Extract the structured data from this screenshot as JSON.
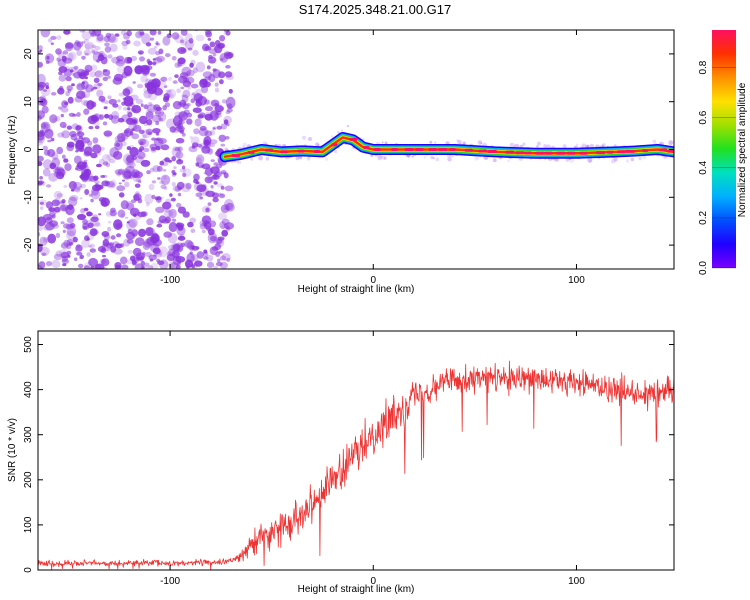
{
  "title": "S174.2025.348.21.00.G17",
  "colors": {
    "snr_line": "#ee3333",
    "background_scatter": "#8833dd",
    "colorbar": [
      "#7a00ff",
      "#2000ff",
      "#0050ff",
      "#00b0ff",
      "#00e0c0",
      "#20e020",
      "#a0e000",
      "#ffe000",
      "#ff9000",
      "#ff3000",
      "#ff1060"
    ]
  },
  "chart_data": [
    {
      "id": "spectrogram",
      "type": "heatmap",
      "xlabel": "Height of straight line (km)",
      "ylabel": "Frequency (Hz)",
      "xlim": [
        -165,
        148
      ],
      "ylim": [
        -25,
        25
      ],
      "xticks": [
        -100,
        0,
        100
      ],
      "yticks": [
        -20,
        -10,
        0,
        10,
        20
      ],
      "grid": false,
      "noise_region_x": [
        -165,
        -70
      ],
      "signal_ridge": {
        "x": [
          -73,
          -65,
          -55,
          -45,
          -35,
          -25,
          -20,
          -15,
          -10,
          -5,
          0,
          20,
          40,
          60,
          80,
          100,
          120,
          130,
          140,
          148
        ],
        "freq_hz": [
          -1.5,
          -1.0,
          0.0,
          -0.5,
          -0.3,
          -0.5,
          1.0,
          2.5,
          2.0,
          0.5,
          0.0,
          0.0,
          0.0,
          -0.5,
          -0.8,
          -0.8,
          -0.5,
          -0.3,
          0.0,
          -0.5
        ]
      },
      "colorbar": {
        "label": "Normalized spectral amplitude",
        "range": [
          0.0,
          0.95
        ],
        "ticks": [
          "0.0",
          "0.2",
          "0.4",
          "0.6",
          "0.8"
        ],
        "tick_values": [
          0.0,
          0.2,
          0.4,
          0.6,
          0.8
        ]
      }
    },
    {
      "id": "snr",
      "type": "line",
      "xlabel": "Height of straight line (km)",
      "ylabel": "SNR (10 * v/v)",
      "xlim": [
        -165,
        148
      ],
      "ylim": [
        0,
        530
      ],
      "xticks": [
        -100,
        0,
        100
      ],
      "yticks": [
        0,
        100,
        200,
        300,
        400,
        500
      ],
      "grid": false,
      "series": [
        {
          "name": "SNR",
          "x": [
            -165,
            -140,
            -120,
            -100,
            -80,
            -70,
            -65,
            -60,
            -55,
            -50,
            -45,
            -40,
            -35,
            -30,
            -25,
            -20,
            -15,
            -10,
            -5,
            0,
            5,
            10,
            15,
            20,
            25,
            30,
            35,
            40,
            50,
            60,
            70,
            80,
            90,
            100,
            110,
            120,
            130,
            140,
            148
          ],
          "mean": [
            15,
            15,
            15,
            15,
            17,
            20,
            30,
            55,
            75,
            85,
            95,
            110,
            130,
            150,
            175,
            200,
            220,
            250,
            270,
            300,
            320,
            340,
            360,
            385,
            400,
            410,
            420,
            425,
            425,
            425,
            420,
            420,
            420,
            415,
            410,
            400,
            395,
            395,
            400
          ],
          "noise_amplitude": [
            10,
            10,
            10,
            10,
            10,
            12,
            25,
            40,
            50,
            55,
            55,
            60,
            60,
            60,
            65,
            65,
            65,
            65,
            65,
            65,
            65,
            65,
            60,
            60,
            55,
            50,
            50,
            50,
            50,
            50,
            50,
            50,
            50,
            50,
            50,
            50,
            50,
            50,
            50
          ]
        }
      ]
    }
  ]
}
